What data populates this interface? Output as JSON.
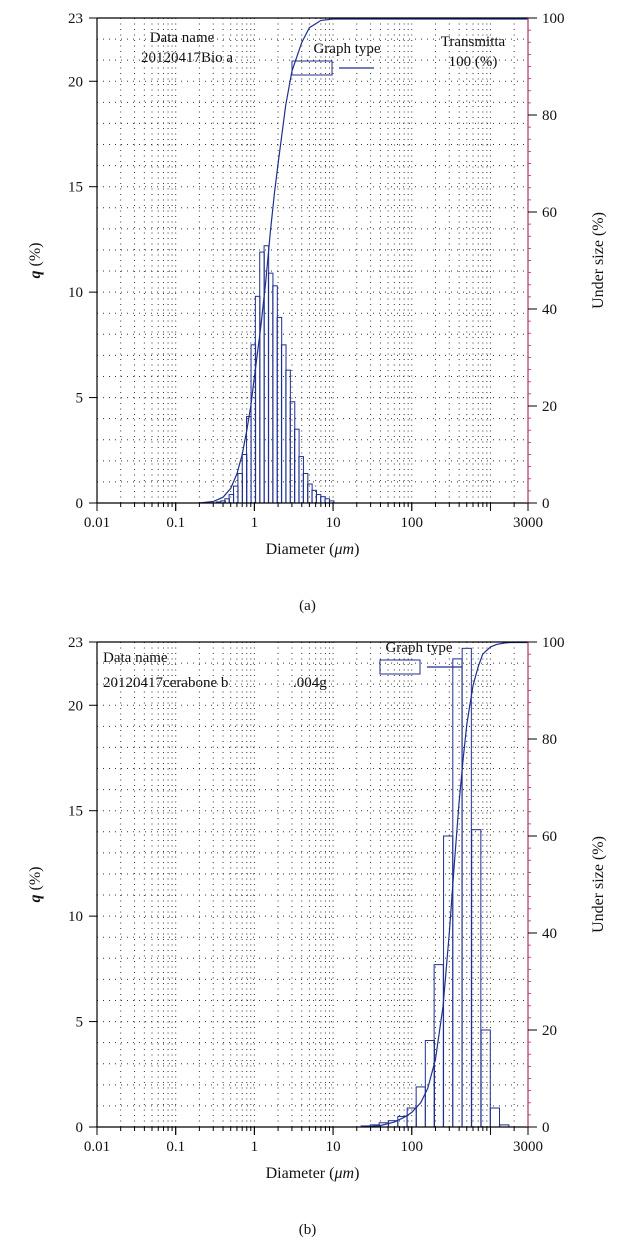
{
  "colors": {
    "ink": "#1f2f8f",
    "axis": "#000000",
    "grid": "#333333",
    "right_axis": "#b0306f"
  },
  "chart_data": [
    {
      "type": "bar",
      "panel_label": "(a)",
      "xlabel_prefix": "Diameter (",
      "xlabel_unit": "μm",
      "xlabel_suffix": ")",
      "ylabel_var": "q",
      "ylabel_unit": " (%)",
      "y2label": "Under size (%)",
      "x_scale": "log",
      "xlim": [
        0.01,
        3000
      ],
      "ylim": [
        0,
        23
      ],
      "y2lim": [
        0,
        100
      ],
      "x_ticks": [
        0.01,
        0.1,
        1,
        10,
        100,
        3000
      ],
      "x_tick_labels": [
        "0.01",
        "0.1",
        "1",
        "10",
        "100",
        "3000"
      ],
      "y_ticks": [
        0,
        5,
        10,
        15,
        20,
        23
      ],
      "y_tick_labels": [
        "0",
        "5",
        "10",
        "15",
        "20",
        "23"
      ],
      "y2_ticks": [
        0,
        20,
        40,
        60,
        80,
        100
      ],
      "y2_tick_labels": [
        "0",
        "20",
        "40",
        "60",
        "80",
        "100"
      ],
      "grid": true,
      "info": {
        "data_name_label": "Data name",
        "data_name_value": "20120417Bio a",
        "graph_type_label": "Graph type",
        "transmit_label": "Transmitta",
        "transmit_value": "100 (%)"
      },
      "bars": {
        "x": [
          0.35,
          0.4,
          0.45,
          0.51,
          0.58,
          0.66,
          0.75,
          0.85,
          0.97,
          1.1,
          1.25,
          1.42,
          1.61,
          1.83,
          2.08,
          2.36,
          2.68,
          3.05,
          3.46,
          3.93,
          4.47,
          5.07,
          5.76,
          6.54,
          7.43,
          8.44,
          9.59
        ],
        "q": [
          0.05,
          0.1,
          0.2,
          0.4,
          0.8,
          1.4,
          2.3,
          4.1,
          7.5,
          9.8,
          11.9,
          12.2,
          10.9,
          10.3,
          8.8,
          7.5,
          6.3,
          4.8,
          3.5,
          2.2,
          1.4,
          0.9,
          0.6,
          0.4,
          0.3,
          0.2,
          0.1
        ]
      },
      "cumulative": {
        "x": [
          0.2,
          0.3,
          0.4,
          0.5,
          0.6,
          0.7,
          0.8,
          0.9,
          1.0,
          1.2,
          1.4,
          1.6,
          1.8,
          2.0,
          2.5,
          3.0,
          4.0,
          5.0,
          7.0,
          10.0,
          3000
        ],
        "y": [
          0,
          0.3,
          1.2,
          3,
          6,
          10,
          15,
          20,
          26,
          36,
          46,
          56,
          64,
          70,
          82,
          89,
          95,
          98,
          99.5,
          99.8,
          99.8
        ]
      }
    },
    {
      "type": "bar",
      "panel_label": "(b)",
      "xlabel_prefix": "Diameter (",
      "xlabel_unit": "μm",
      "xlabel_suffix": ")",
      "ylabel_var": "q",
      "ylabel_unit": " (%)",
      "y2label": "Under size (%)",
      "x_scale": "log",
      "xlim": [
        0.01,
        3000
      ],
      "ylim": [
        0,
        23
      ],
      "y2lim": [
        0,
        100
      ],
      "x_ticks": [
        0.01,
        0.1,
        1,
        10,
        100,
        3000
      ],
      "x_tick_labels": [
        "0.01",
        "0.1",
        "1",
        "10",
        "100",
        "3000"
      ],
      "y_ticks": [
        0,
        5,
        10,
        15,
        20,
        23
      ],
      "y_tick_labels": [
        "0",
        "5",
        "10",
        "15",
        "20",
        "23"
      ],
      "y2_ticks": [
        0,
        20,
        40,
        60,
        80,
        100
      ],
      "y2_tick_labels": [
        "0",
        "20",
        "40",
        "60",
        "80",
        "100"
      ],
      "grid": true,
      "info": {
        "data_name_label": "Data name",
        "data_name_value": "20120417cerabone b",
        "data_name_extra": ".004g",
        "graph_type_label": "Graph type"
      },
      "bars": {
        "x": [
          26,
          34,
          44,
          58,
          76,
          100,
          130,
          170,
          220,
          290,
          380,
          500,
          660,
          870,
          1140,
          1500
        ],
        "q": [
          0.05,
          0.1,
          0.2,
          0.3,
          0.5,
          0.9,
          1.9,
          4.1,
          7.7,
          13.8,
          22.2,
          22.7,
          14.1,
          4.6,
          0.9,
          0.1
        ]
      },
      "cumulative": {
        "x": [
          25,
          40,
          60,
          80,
          100,
          130,
          160,
          200,
          250,
          300,
          350,
          400,
          450,
          500,
          600,
          700,
          800,
          1000,
          1200,
          1500,
          1800,
          3000
        ],
        "y": [
          0,
          0.3,
          1,
          2,
          3,
          5,
          8,
          14,
          25,
          40,
          55,
          67,
          76,
          83,
          91,
          95,
          97.5,
          99,
          99.5,
          99.8,
          99.9,
          99.9
        ]
      }
    }
  ]
}
